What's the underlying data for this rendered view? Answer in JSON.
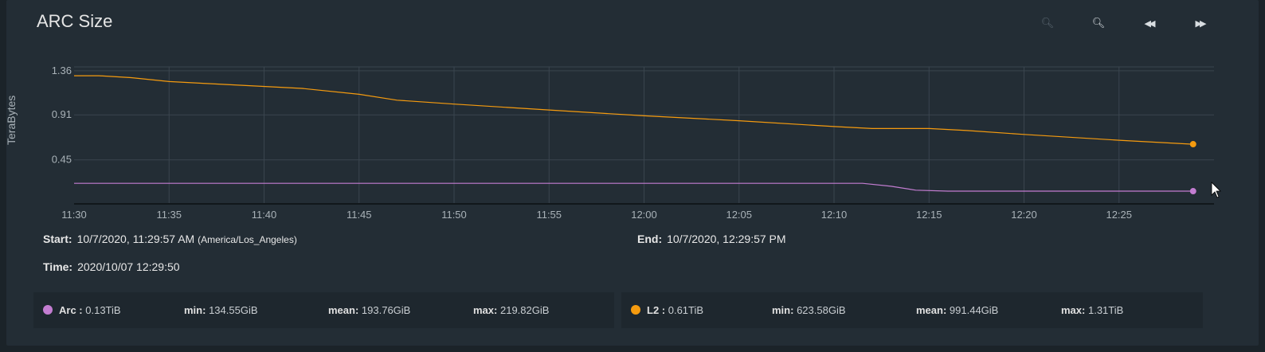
{
  "title": "ARC Size",
  "toolbar": [
    {
      "name": "zoom-in-icon",
      "glyph": "🔍︎",
      "dim": true
    },
    {
      "name": "zoom-out-icon",
      "glyph": "🔍︎",
      "dim": false
    },
    {
      "name": "rewind-icon",
      "glyph": "◀◀",
      "dim": false
    },
    {
      "name": "fast-forward-icon",
      "glyph": "▶▶",
      "dim": false
    }
  ],
  "info": {
    "start_label": "Start:",
    "start_value": "10/7/2020, 11:29:57 AM",
    "start_tz": "(America/Los_Angeles)",
    "end_label": "End:",
    "end_value": "10/7/2020, 12:29:57 PM",
    "time_label": "Time:",
    "time_value": "2020/10/07 12:29:50"
  },
  "legend": [
    {
      "name": "Arc",
      "current": "0.13TiB",
      "min_label": "min:",
      "min": "134.55GiB",
      "mean_label": "mean:",
      "mean": "193.76GiB",
      "max_label": "max:",
      "max": "219.82GiB",
      "color": "#c37dd1"
    },
    {
      "name": "L2",
      "current": "0.61TiB",
      "min_label": "min:",
      "min": "623.58GiB",
      "mean_label": "mean:",
      "mean": "991.44GiB",
      "max_label": "max:",
      "max": "1.31TiB",
      "color": "#f59b0f"
    }
  ],
  "chart_data": {
    "type": "line",
    "ylabel": "TeraBytes",
    "yticks": [
      "0.45",
      "0.91",
      "1.36"
    ],
    "ytick_values": [
      0.45,
      0.91,
      1.36
    ],
    "ylim": [
      0,
      1.4
    ],
    "xticks": [
      "11:30",
      "11:35",
      "11:40",
      "11:45",
      "11:50",
      "11:55",
      "12:00",
      "12:05",
      "12:10",
      "12:15",
      "12:20",
      "12:25"
    ],
    "xtick_minutes": [
      0,
      5,
      10,
      15,
      20,
      25,
      30,
      35,
      40,
      45,
      50,
      55
    ],
    "xlim_minutes": [
      0,
      60
    ],
    "grid": true,
    "series": [
      {
        "name": "L2",
        "color": "#f59b0f",
        "x": [
          0,
          1.3,
          3,
          5,
          7,
          12,
          15,
          17,
          20,
          25,
          30,
          35,
          40,
          42,
          45,
          47,
          50,
          55,
          58.9
        ],
        "y": [
          1.31,
          1.31,
          1.29,
          1.25,
          1.23,
          1.18,
          1.12,
          1.06,
          1.02,
          0.96,
          0.9,
          0.85,
          0.79,
          0.77,
          0.77,
          0.75,
          0.71,
          0.65,
          0.61
        ]
      },
      {
        "name": "Arc",
        "color": "#c37dd1",
        "x": [
          0,
          40,
          41.5,
          43,
          44.3,
          46,
          50,
          55,
          58.9
        ],
        "y": [
          0.21,
          0.21,
          0.21,
          0.18,
          0.14,
          0.13,
          0.13,
          0.13,
          0.13
        ]
      }
    ]
  }
}
